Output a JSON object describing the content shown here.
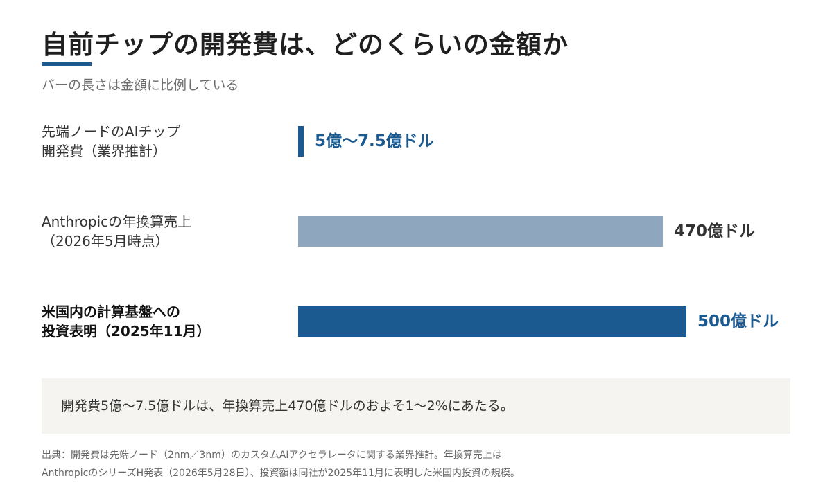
{
  "chart_data": {
    "type": "bar",
    "orientation": "horizontal",
    "title": "自前チップの開発費は、どのくらいの金額か",
    "subtitle": "バーの長さは金額に比例している",
    "unit": "億ドル",
    "categories": [
      "先端ノードのAIチップ\n開発費（業界推計）",
      "Anthropicの年換算売上\n（2026年5月時点）",
      "米国内の計算基盤への\n投資表明（2025年11月）"
    ],
    "values": [
      7.5,
      470,
      500
    ],
    "value_ranges": [
      [
        5,
        7.5
      ],
      null,
      null
    ],
    "value_labels": [
      "5億〜7.5億ドル",
      "470億ドル",
      "500億ドル"
    ],
    "colors": [
      "#1a5a91",
      "#8fa7be",
      "#1a5a91"
    ],
    "label_colors": [
      "#1a5a91",
      "#333333",
      "#1a5a91"
    ],
    "bold_categories": [
      false,
      false,
      true
    ],
    "xlim": [
      0,
      500
    ]
  },
  "note": "開発費5億〜7.5億ドルは、年換算売上470億ドルのおよそ1〜2%にあたる。",
  "source": "出典：開発費は先端ノード（2nm／3nm）のカスタムAIアクセラレータに関する業界推計。年換算売上は\nAnthropicのシリーズH発表（2026年5月28日）、投資額は同社が2025年11月に表明した米国内投資の規模。"
}
